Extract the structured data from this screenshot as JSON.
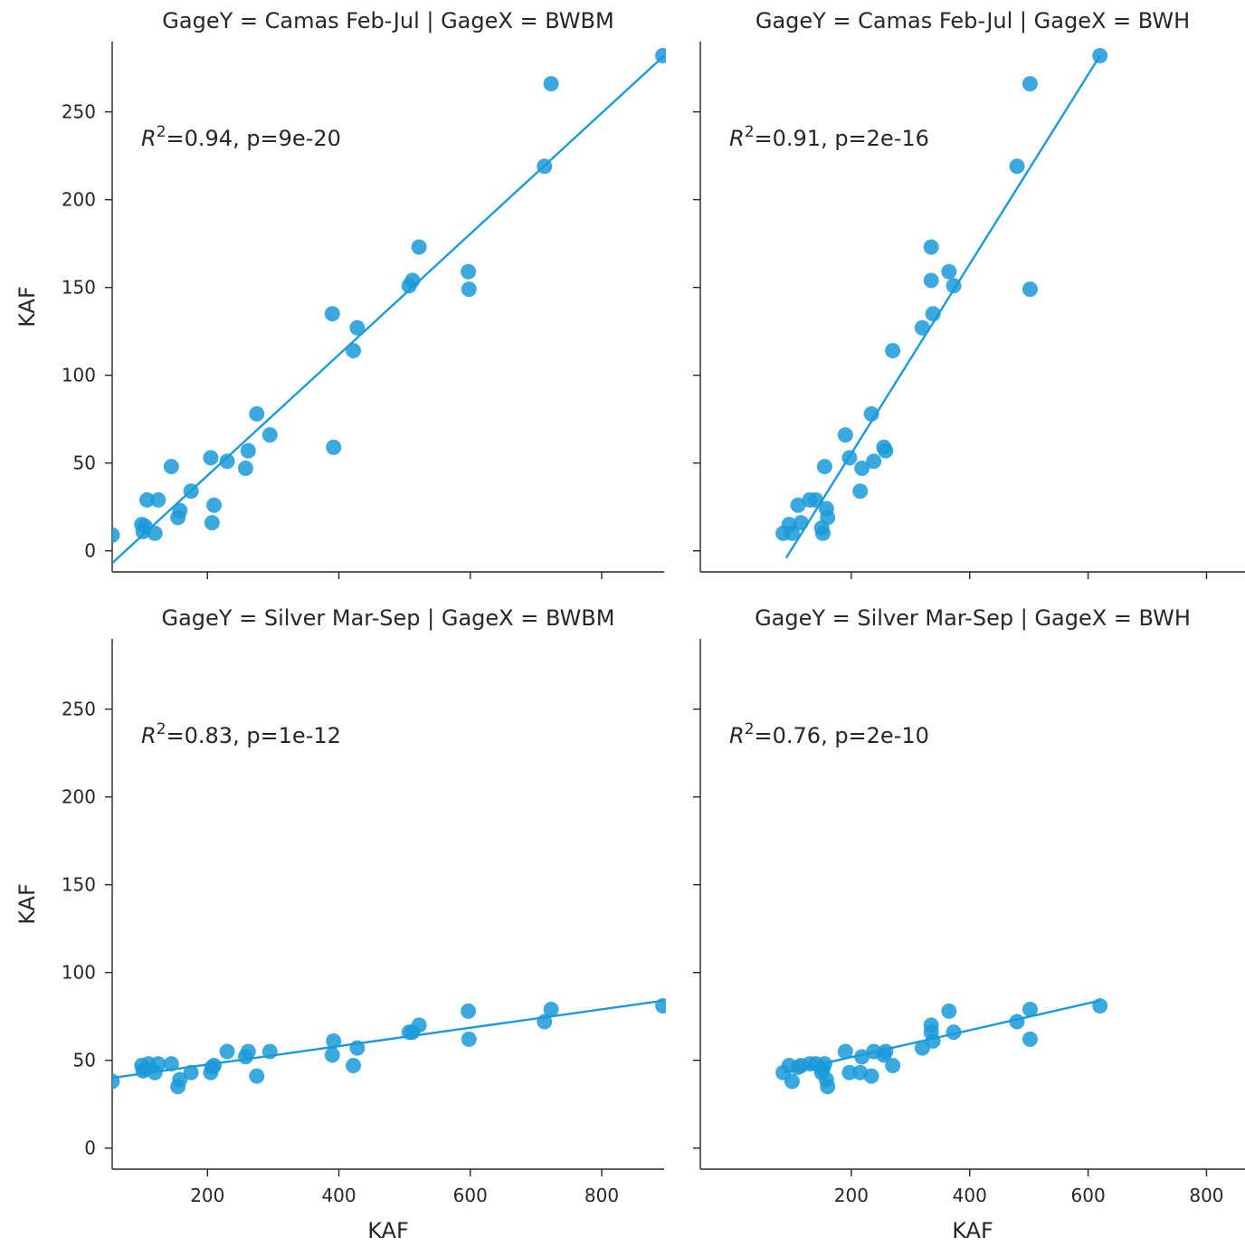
{
  "figure": {
    "axis_label": "KAF",
    "colors": {
      "series": "#1a9ad8",
      "axes": "#262626",
      "background": "#ffffff"
    }
  },
  "chart_data": [
    {
      "type": "scatter",
      "title": "GageY = Camas Feb-Jul | GageX = BWBM",
      "xlabel": "",
      "ylabel": "KAF",
      "xlim": [
        55,
        895
      ],
      "ylim": [
        -12,
        290
      ],
      "xticks": [],
      "yticks": [
        "0",
        "50",
        "100",
        "150",
        "200",
        "250"
      ],
      "annotation": {
        "r2_prefix": "R",
        "r2_exp": "2",
        "r2_text": "=0.94, p=9e-20"
      },
      "fit": {
        "x": [
          55,
          895
        ],
        "y": [
          -7,
          282
        ]
      },
      "points": {
        "x": [
          55,
          100,
          102,
          105,
          108,
          120,
          125,
          145,
          155,
          158,
          175,
          205,
          207,
          210,
          230,
          258,
          262,
          275,
          295,
          390,
          392,
          422,
          428,
          507,
          512,
          522,
          597,
          598,
          713,
          723,
          893
        ],
        "y": [
          9,
          15,
          11,
          14,
          29,
          10,
          29,
          48,
          19,
          23,
          34,
          53,
          16,
          26,
          51,
          47,
          57,
          78,
          66,
          135,
          59,
          114,
          127,
          151,
          154,
          173,
          159,
          149,
          219,
          266,
          282
        ]
      }
    },
    {
      "type": "scatter",
      "title": "GageY = Camas Feb-Jul | GageX = BWH",
      "xlabel": "",
      "ylabel": "",
      "xlim": [
        -55,
        865
      ],
      "ylim": [
        -12,
        290
      ],
      "xticks": [],
      "yticks": [],
      "annotation": {
        "r2_prefix": "R",
        "r2_exp": "2",
        "r2_text": "=0.91, p=2e-16"
      },
      "fit": {
        "x": [
          90,
          620
        ],
        "y": [
          -4,
          282
        ]
      },
      "points": {
        "x": [
          85,
          95,
          100,
          110,
          115,
          130,
          140,
          150,
          152,
          155,
          158,
          160,
          190,
          197,
          215,
          218,
          234,
          238,
          255,
          258,
          270,
          320,
          335,
          335,
          338,
          365,
          373,
          480,
          502,
          502,
          620
        ],
        "y": [
          10,
          15,
          10,
          26,
          16,
          29,
          29,
          13,
          10,
          48,
          24,
          19,
          66,
          53,
          34,
          47,
          78,
          51,
          59,
          57,
          114,
          127,
          173,
          154,
          135,
          159,
          151,
          219,
          266,
          149,
          282
        ]
      }
    },
    {
      "type": "scatter",
      "title": "GageY = Silver Mar-Sep | GageX = BWBM",
      "xlabel": "KAF",
      "ylabel": "KAF",
      "xlim": [
        55,
        895
      ],
      "ylim": [
        -12,
        290
      ],
      "xticks": [
        "200",
        "400",
        "600",
        "800"
      ],
      "yticks": [
        "0",
        "50",
        "100",
        "150",
        "200",
        "250"
      ],
      "annotation": {
        "r2_prefix": "R",
        "r2_exp": "2",
        "r2_text": "=0.83, p=1e-12"
      },
      "fit": {
        "x": [
          55,
          895
        ],
        "y": [
          40,
          84
        ]
      },
      "points": {
        "x": [
          55,
          100,
          102,
          105,
          110,
          120,
          125,
          145,
          155,
          158,
          175,
          205,
          207,
          210,
          230,
          258,
          262,
          275,
          295,
          390,
          392,
          422,
          428,
          507,
          512,
          522,
          597,
          598,
          713,
          723,
          893
        ],
        "y": [
          38,
          47,
          44,
          45,
          48,
          43,
          48,
          48,
          35,
          39,
          43,
          43,
          46,
          47,
          55,
          52,
          55,
          41,
          55,
          53,
          61,
          47,
          57,
          66,
          66,
          70,
          78,
          62,
          72,
          79,
          81
        ]
      }
    },
    {
      "type": "scatter",
      "title": "GageY = Silver Mar-Sep | GageX = BWH",
      "xlabel": "KAF",
      "ylabel": "",
      "xlim": [
        -55,
        865
      ],
      "ylim": [
        -12,
        290
      ],
      "xticks": [
        "200",
        "400",
        "600",
        "800"
      ],
      "yticks": [],
      "annotation": {
        "r2_prefix": "R",
        "r2_exp": "2",
        "r2_text": "=0.76, p=2e-10"
      },
      "fit": {
        "x": [
          85,
          620
        ],
        "y": [
          43,
          84
        ]
      },
      "points": {
        "x": [
          85,
          95,
          100,
          110,
          115,
          130,
          140,
          150,
          152,
          155,
          158,
          160,
          190,
          197,
          215,
          218,
          234,
          238,
          255,
          258,
          270,
          320,
          335,
          335,
          338,
          365,
          373,
          480,
          502,
          502,
          620
        ],
        "y": [
          43,
          47,
          38,
          46,
          47,
          48,
          48,
          43,
          45,
          48,
          39,
          35,
          55,
          43,
          43,
          52,
          41,
          55,
          53,
          55,
          47,
          57,
          70,
          66,
          61,
          78,
          66,
          72,
          79,
          62,
          81
        ]
      }
    }
  ]
}
